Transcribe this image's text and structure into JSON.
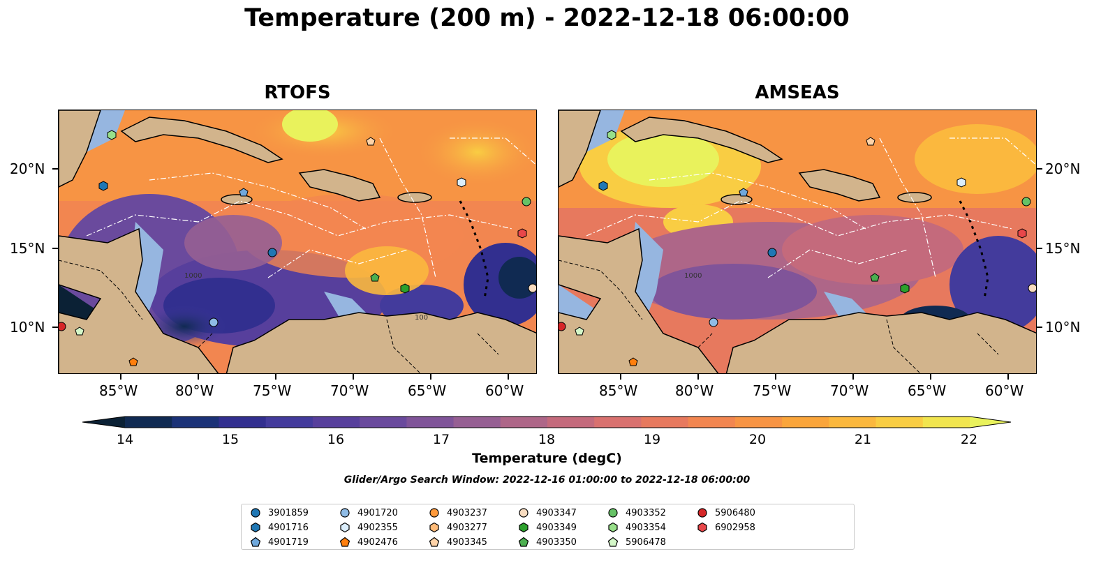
{
  "title": "Temperature (200 m) - 2022-12-18 06:00:00",
  "panels": [
    {
      "title": "RTOFS"
    },
    {
      "title": "AMSEAS"
    }
  ],
  "lon_ticks": [
    "85°W",
    "80°W",
    "75°W",
    "70°W",
    "65°W",
    "60°W"
  ],
  "lat_ticks": [
    "20°N",
    "15°N",
    "10°N"
  ],
  "colorbar": {
    "ticks": [
      "14",
      "15",
      "16",
      "17",
      "18",
      "19",
      "20",
      "21",
      "22"
    ],
    "label": "Temperature (degC)",
    "colors": [
      "#0b2135",
      "#102a52",
      "#1b3277",
      "#322f8f",
      "#433b9c",
      "#573f9c",
      "#6a4a9d",
      "#805499",
      "#965f93",
      "#ae6688",
      "#c46a7c",
      "#d9716f",
      "#e7795e",
      "#f28650",
      "#f79444",
      "#faa53b",
      "#fbb83e",
      "#f9cd43",
      "#f1e54f",
      "#e9f25c"
    ]
  },
  "search_window": "Glider/Argo Search Window: 2022-12-16 01:00:00 to 2022-12-18 06:00:00",
  "contour_labels": [
    "1000",
    "1000",
    "100"
  ],
  "legend": [
    {
      "id": "3901859",
      "marker": "circle",
      "color": "#1f77b4"
    },
    {
      "id": "4901716",
      "marker": "hexagon",
      "color": "#1f77b4"
    },
    {
      "id": "4901719",
      "marker": "pentagon",
      "color": "#6fa8dc"
    },
    {
      "id": "4901720",
      "marker": "circle",
      "color": "#8fbce6"
    },
    {
      "id": "4902355",
      "marker": "hexagon",
      "color": "#dbeefc"
    },
    {
      "id": "4902476",
      "marker": "pentagon",
      "color": "#ff7f0e"
    },
    {
      "id": "4903237",
      "marker": "circle",
      "color": "#ff9a3c"
    },
    {
      "id": "4903277",
      "marker": "hexagon",
      "color": "#ffbb78"
    },
    {
      "id": "4903345",
      "marker": "pentagon",
      "color": "#ffd3a8"
    },
    {
      "id": "4903347",
      "marker": "circle",
      "color": "#f8dcc0"
    },
    {
      "id": "4903349",
      "marker": "hexagon",
      "color": "#2ca02c"
    },
    {
      "id": "4903350",
      "marker": "pentagon",
      "color": "#4caf50"
    },
    {
      "id": "4903352",
      "marker": "circle",
      "color": "#66c266"
    },
    {
      "id": "4903354",
      "marker": "hexagon",
      "color": "#98df8a"
    },
    {
      "id": "5906478",
      "marker": "pentagon",
      "color": "#d4f7c8"
    },
    {
      "id": "5906480",
      "marker": "circle",
      "color": "#d62728"
    },
    {
      "id": "6902958",
      "marker": "hexagon",
      "color": "#e8474a"
    }
  ]
}
